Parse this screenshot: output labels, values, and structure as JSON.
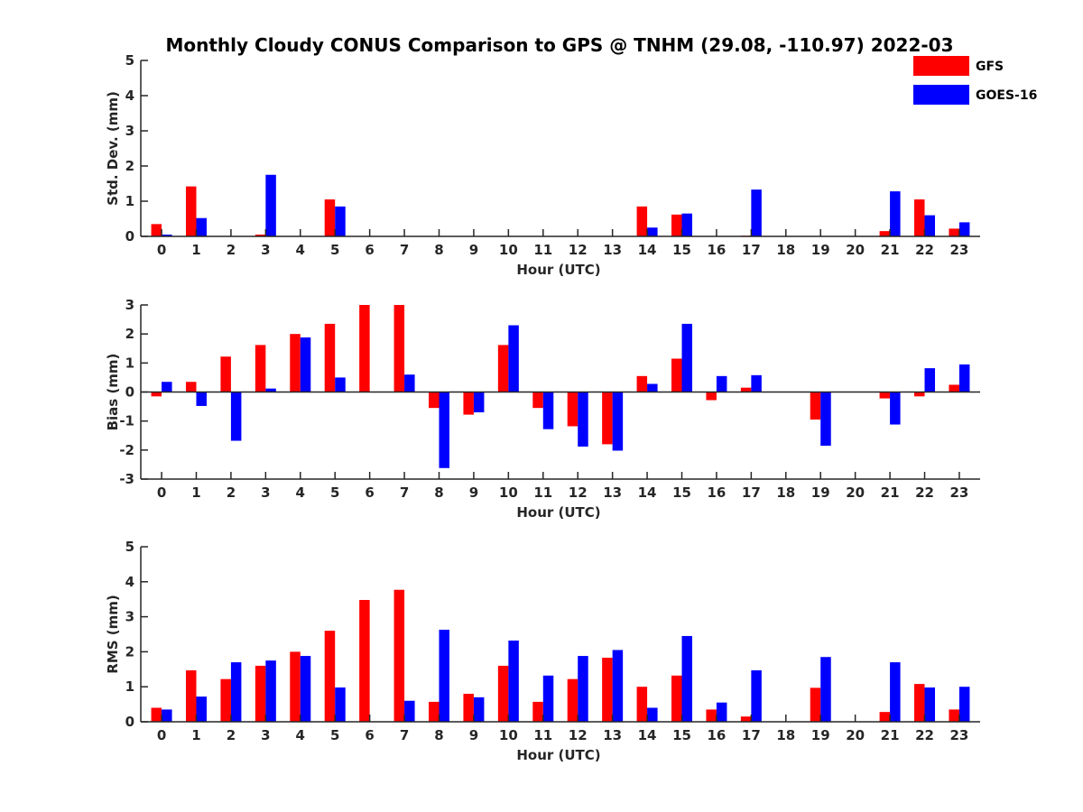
{
  "title": "Monthly Cloudy CONUS Comparison to GPS @ TNHM (29.08, -110.97) 2022-03",
  "colors": {
    "GFS": "#ff0000",
    "GOES-16": "#0000ff",
    "axis": "#262626"
  },
  "legend": {
    "placement": "top-right",
    "entries": [
      "GFS",
      "GOES-16"
    ]
  },
  "chart_data": [
    {
      "type": "bar",
      "xlabel": "Hour (UTC)",
      "ylabel": "Std. Dev. (mm)",
      "ylim": [
        0,
        5
      ],
      "yticks": [
        0,
        1,
        2,
        3,
        4,
        5
      ],
      "categories": [
        "0",
        "1",
        "2",
        "3",
        "4",
        "5",
        "6",
        "7",
        "8",
        "9",
        "10",
        "11",
        "12",
        "13",
        "14",
        "15",
        "16",
        "17",
        "18",
        "19",
        "20",
        "21",
        "22",
        "23"
      ],
      "series": [
        {
          "name": "GFS",
          "values": [
            0.35,
            1.42,
            0,
            0.05,
            0,
            1.05,
            0,
            0,
            0,
            0,
            0,
            0,
            0,
            0,
            0.85,
            0.62,
            0,
            0.02,
            0,
            0,
            0,
            0.15,
            1.05,
            0.22
          ]
        },
        {
          "name": "GOES-16",
          "values": [
            0.05,
            0.52,
            0,
            1.75,
            0,
            0.85,
            0,
            0,
            0,
            0,
            0,
            0,
            0,
            0,
            0.25,
            0.65,
            0,
            1.33,
            0,
            0,
            0,
            1.28,
            0.6,
            0.4
          ]
        }
      ]
    },
    {
      "type": "bar",
      "xlabel": "Hour (UTC)",
      "ylabel": "Bias (mm)",
      "ylim": [
        -3,
        3
      ],
      "yticks": [
        -3,
        -2,
        -1,
        0,
        1,
        2,
        3
      ],
      "categories": [
        "0",
        "1",
        "2",
        "3",
        "4",
        "5",
        "6",
        "7",
        "8",
        "9",
        "10",
        "11",
        "12",
        "13",
        "14",
        "15",
        "16",
        "17",
        "18",
        "19",
        "20",
        "21",
        "22",
        "23"
      ],
      "series": [
        {
          "name": "GFS",
          "values": [
            -0.15,
            0.35,
            1.22,
            1.62,
            2.0,
            2.35,
            3.0,
            3.0,
            -0.55,
            -0.78,
            1.62,
            -0.55,
            -1.18,
            -1.8,
            0.55,
            1.15,
            -0.28,
            0.15,
            0,
            -0.95,
            0,
            -0.22,
            -0.15,
            0.25
          ]
        },
        {
          "name": "GOES-16",
          "values": [
            0.35,
            -0.48,
            -1.68,
            0.12,
            1.88,
            0.5,
            0,
            0.6,
            -2.62,
            -0.7,
            2.3,
            -1.28,
            -1.88,
            -2.02,
            0.28,
            2.35,
            0.55,
            0.58,
            0,
            -1.85,
            0,
            -1.12,
            0.82,
            0.95
          ]
        }
      ]
    },
    {
      "type": "bar",
      "xlabel": "Hour (UTC)",
      "ylabel": "RMS (mm)",
      "ylim": [
        0,
        5
      ],
      "yticks": [
        0,
        1,
        2,
        3,
        4,
        5
      ],
      "categories": [
        "0",
        "1",
        "2",
        "3",
        "4",
        "5",
        "6",
        "7",
        "8",
        "9",
        "10",
        "11",
        "12",
        "13",
        "14",
        "15",
        "16",
        "17",
        "18",
        "19",
        "20",
        "21",
        "22",
        "23"
      ],
      "series": [
        {
          "name": "GFS",
          "values": [
            0.4,
            1.47,
            1.22,
            1.6,
            2.0,
            2.6,
            3.48,
            3.77,
            0.57,
            0.8,
            1.6,
            0.57,
            1.22,
            1.83,
            1.0,
            1.32,
            0.35,
            0.15,
            0,
            0.97,
            0,
            0.28,
            1.08,
            0.35
          ]
        },
        {
          "name": "GOES-16",
          "values": [
            0.35,
            0.72,
            1.7,
            1.75,
            1.88,
            0.98,
            0,
            0.6,
            2.63,
            0.7,
            2.32,
            1.32,
            1.88,
            2.05,
            0.4,
            2.45,
            0.55,
            1.47,
            0,
            1.85,
            0,
            1.7,
            0.98,
            1.0
          ]
        }
      ]
    }
  ]
}
